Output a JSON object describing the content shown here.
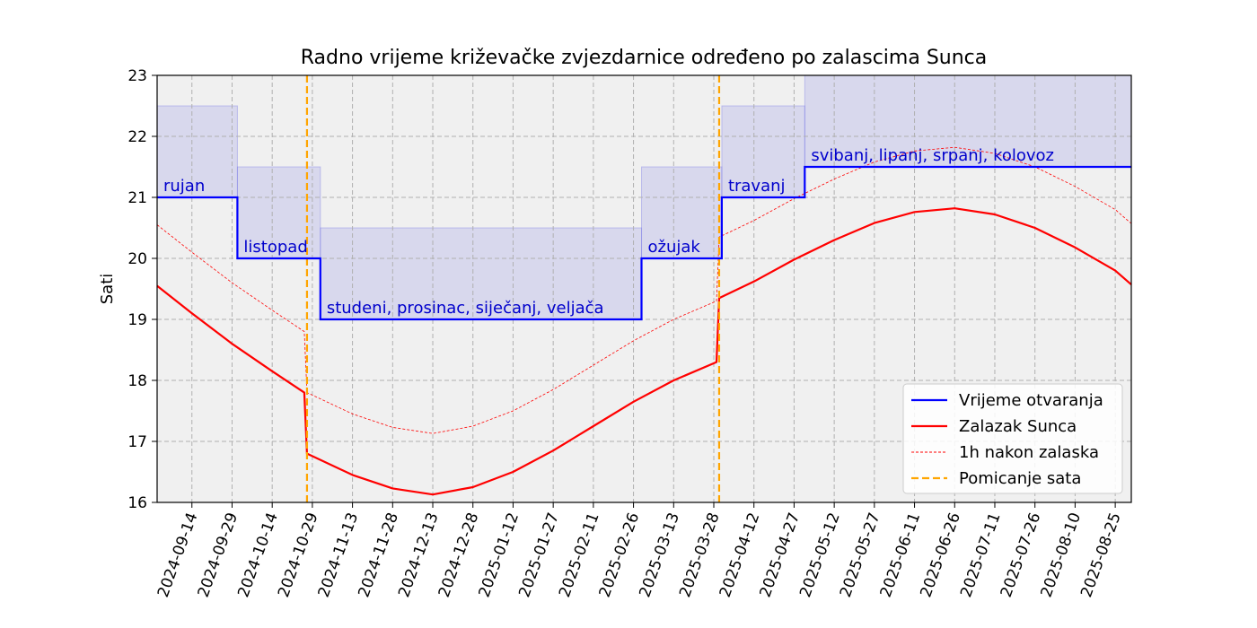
{
  "chart_data": {
    "type": "line",
    "title": "Radno vrijeme križevačke zvjezdarnice određeno po zalascima Sunca",
    "xlabel": "",
    "ylabel": "Sati",
    "xlim": [
      "2024-09-01",
      "2025-08-31"
    ],
    "ylim": [
      16,
      23
    ],
    "yticks": [
      16,
      17,
      18,
      19,
      20,
      21,
      22,
      23
    ],
    "xticks": [
      "2024-09-14",
      "2024-09-29",
      "2024-10-14",
      "2024-10-29",
      "2024-11-13",
      "2024-11-28",
      "2024-12-13",
      "2024-12-28",
      "2025-01-12",
      "2025-01-27",
      "2025-02-11",
      "2025-02-26",
      "2025-03-13",
      "2025-03-28",
      "2025-04-12",
      "2025-04-27",
      "2025-05-12",
      "2025-05-27",
      "2025-06-11",
      "2025-06-26",
      "2025-07-11",
      "2025-07-26",
      "2025-08-10",
      "2025-08-25"
    ],
    "grid": true,
    "legend_position": "lower-right",
    "legend": [
      {
        "label": "Vrijeme otvaranja",
        "color": "#0000ff",
        "style": "solid"
      },
      {
        "label": "Zalazak Sunca",
        "color": "#ff0000",
        "style": "solid"
      },
      {
        "label": "1h nakon zalaska",
        "color": "#ff0000",
        "style": "dotted"
      },
      {
        "label": "Pomicanje sata",
        "color": "#ffa500",
        "style": "dashed"
      }
    ],
    "opening_hours": [
      {
        "month_label": "rujan",
        "start": "2024-09-01",
        "end": "2024-10-01",
        "open": 21,
        "close": 22.5
      },
      {
        "month_label": "listopad",
        "start": "2024-10-01",
        "end": "2024-11-01",
        "open": 20,
        "close": 21.5
      },
      {
        "month_label": "studeni, prosinac, siječanj, veljača",
        "start": "2024-11-01",
        "end": "2025-03-01",
        "open": 19,
        "close": 20.5
      },
      {
        "month_label": "ožujak",
        "start": "2025-03-01",
        "end": "2025-03-31",
        "open": 20,
        "close": 21.5
      },
      {
        "month_label": "travanj",
        "start": "2025-03-31",
        "end": "2025-05-01",
        "open": 21,
        "close": 22.5
      },
      {
        "month_label": "svibanj, lipanj, srpanj, kolovoz",
        "start": "2025-05-01",
        "end": "2025-08-31",
        "open": 21.5,
        "close": 23
      }
    ],
    "sunset": [
      {
        "x": "2024-09-01",
        "y": 19.55
      },
      {
        "x": "2024-09-14",
        "y": 19.1
      },
      {
        "x": "2024-09-29",
        "y": 18.6
      },
      {
        "x": "2024-10-14",
        "y": 18.15
      },
      {
        "x": "2024-10-26",
        "y": 17.8
      },
      {
        "x": "2024-10-27",
        "y": 16.8
      },
      {
        "x": "2024-11-13",
        "y": 16.45
      },
      {
        "x": "2024-11-28",
        "y": 16.23
      },
      {
        "x": "2024-12-13",
        "y": 16.13
      },
      {
        "x": "2024-12-28",
        "y": 16.25
      },
      {
        "x": "2025-01-12",
        "y": 16.5
      },
      {
        "x": "2025-01-27",
        "y": 16.85
      },
      {
        "x": "2025-02-11",
        "y": 17.25
      },
      {
        "x": "2025-02-26",
        "y": 17.65
      },
      {
        "x": "2025-03-13",
        "y": 18.0
      },
      {
        "x": "2025-03-29",
        "y": 18.3
      },
      {
        "x": "2025-03-30",
        "y": 19.35
      },
      {
        "x": "2025-04-12",
        "y": 19.62
      },
      {
        "x": "2025-04-27",
        "y": 19.98
      },
      {
        "x": "2025-05-12",
        "y": 20.3
      },
      {
        "x": "2025-05-27",
        "y": 20.58
      },
      {
        "x": "2025-06-11",
        "y": 20.76
      },
      {
        "x": "2025-06-26",
        "y": 20.82
      },
      {
        "x": "2025-07-11",
        "y": 20.72
      },
      {
        "x": "2025-07-26",
        "y": 20.5
      },
      {
        "x": "2025-08-10",
        "y": 20.18
      },
      {
        "x": "2025-08-25",
        "y": 19.8
      },
      {
        "x": "2025-08-31",
        "y": 19.57
      }
    ],
    "clock_changes": [
      "2024-10-27",
      "2025-03-30"
    ]
  }
}
